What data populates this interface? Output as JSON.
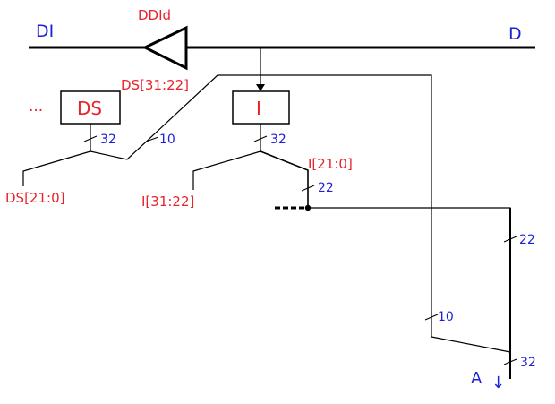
{
  "colors": {
    "red": "#e8242b",
    "blue": "#1f1fd6",
    "wire": "#000000"
  },
  "labels": {
    "di": "DI",
    "d": "D",
    "ddid": "DDId",
    "ds_upper": "DS[31:22]",
    "ds_lower": "DS[21:0]",
    "ellipsis": "...",
    "ds_box": "DS",
    "i_box": "I",
    "i_lower": "I[21:0]",
    "i_upper": "I[31:22]",
    "a": "A",
    "a_arrow": "↓"
  },
  "widths": {
    "ds32": "32",
    "ds10": "10",
    "i32": "32",
    "i22": "22",
    "right22": "22",
    "mid10": "10",
    "out32": "32"
  }
}
